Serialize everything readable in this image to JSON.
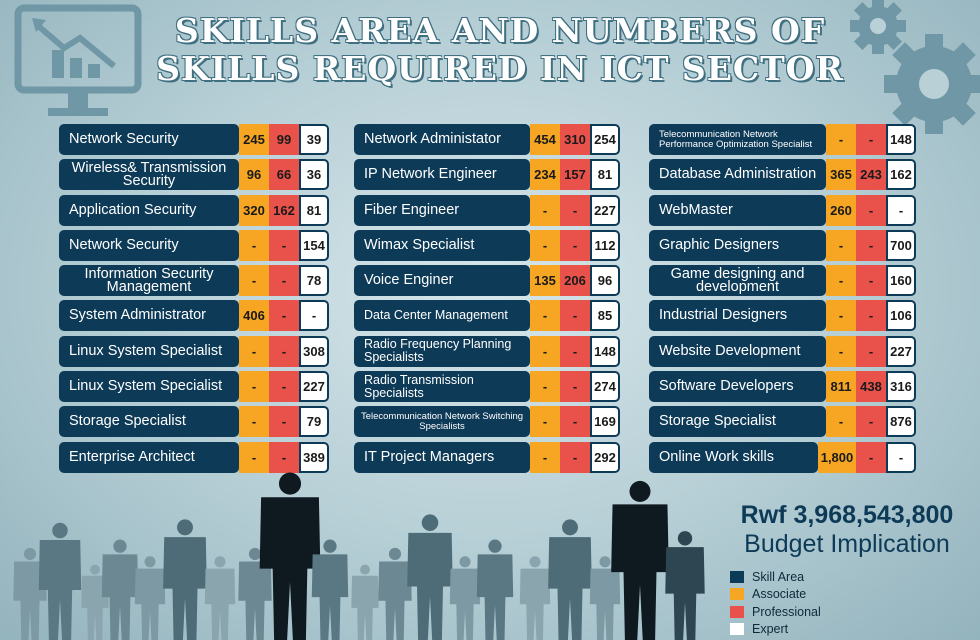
{
  "title_line1": "Skills Area and Numbers of",
  "title_line2": "Skills Required in ICT Sector",
  "columns": [
    [
      {
        "name": "Network Security",
        "associate": "245",
        "professional": "99",
        "expert": "39"
      },
      {
        "name": "Wireless& Transmission Security",
        "associate": "96",
        "professional": "66",
        "expert": "36"
      },
      {
        "name": "Application Security",
        "associate": "320",
        "professional": "162",
        "expert": "81"
      },
      {
        "name": "Network Security",
        "associate": "-",
        "professional": "-",
        "expert": "154"
      },
      {
        "name": "Information Security Management",
        "associate": "-",
        "professional": "-",
        "expert": "78"
      },
      {
        "name": "System Administrator",
        "associate": "406",
        "professional": "-",
        "expert": "-"
      },
      {
        "name": "Linux System Specialist",
        "associate": "-",
        "professional": "-",
        "expert": "308"
      },
      {
        "name": "Linux System Specialist",
        "associate": "-",
        "professional": "-",
        "expert": "227"
      },
      {
        "name": "Storage Specialist",
        "associate": "-",
        "professional": "-",
        "expert": "79"
      },
      {
        "name": "Enterprise Architect",
        "associate": "-",
        "professional": "-",
        "expert": "389"
      }
    ],
    [
      {
        "name": "Network Administator",
        "associate": "454",
        "professional": "310",
        "expert": "254"
      },
      {
        "name": "IP Network Engineer",
        "associate": "234",
        "professional": "157",
        "expert": "81"
      },
      {
        "name": "Fiber Engineer",
        "associate": "-",
        "professional": "-",
        "expert": "227"
      },
      {
        "name": "Wimax Specialist",
        "associate": "-",
        "professional": "-",
        "expert": "112"
      },
      {
        "name": "Voice Enginer",
        "associate": "135",
        "professional": "206",
        "expert": "96"
      },
      {
        "name": "Data Center Management",
        "associate": "-",
        "professional": "-",
        "expert": "85"
      },
      {
        "name": "Radio Frequency Planning Specialists",
        "associate": "-",
        "professional": "-",
        "expert": "148"
      },
      {
        "name": "Radio Transmission Specialists",
        "associate": "-",
        "professional": "-",
        "expert": "274"
      },
      {
        "name": "Telecommunication Network Switching Specialists",
        "associate": "-",
        "professional": "-",
        "expert": "169"
      },
      {
        "name": "IT Project Managers",
        "associate": "-",
        "professional": "-",
        "expert": "292"
      }
    ],
    [
      {
        "name": "Telecommunication Network Performance Optimization Specialist",
        "associate": "-",
        "professional": "-",
        "expert": "148"
      },
      {
        "name": "Database Administration",
        "associate": "365",
        "professional": "243",
        "expert": "162"
      },
      {
        "name": "WebMaster",
        "associate": "260",
        "professional": "-",
        "expert": "-"
      },
      {
        "name": "Graphic Designers",
        "associate": "-",
        "professional": "-",
        "expert": "700"
      },
      {
        "name": "Game designing and development",
        "associate": "-",
        "professional": "-",
        "expert": "160"
      },
      {
        "name": "Industrial Designers",
        "associate": "-",
        "professional": "-",
        "expert": "106"
      },
      {
        "name": "Website Development",
        "associate": "-",
        "professional": "-",
        "expert": "227"
      },
      {
        "name": "Software Developers",
        "associate": "811",
        "professional": "438",
        "expert": "316"
      },
      {
        "name": "Storage Specialist",
        "associate": "-",
        "professional": "-",
        "expert": "876"
      },
      {
        "name": "Online Work skills",
        "associate": "1,800",
        "professional": "-",
        "expert": "-"
      }
    ]
  ],
  "budget": {
    "amount": "Rwf 3,968,543,800",
    "label": "Budget Implication"
  },
  "legend": [
    {
      "label": "Skill Area",
      "color": "#0d3a57"
    },
    {
      "label": "Associate",
      "color": "#f6a623"
    },
    {
      "label": "Professional",
      "color": "#e8524a"
    },
    {
      "label": "Expert",
      "color": "#ffffff"
    }
  ],
  "icons": [
    "monitor-chart-icon",
    "gear-icon",
    "people-silhouette"
  ]
}
